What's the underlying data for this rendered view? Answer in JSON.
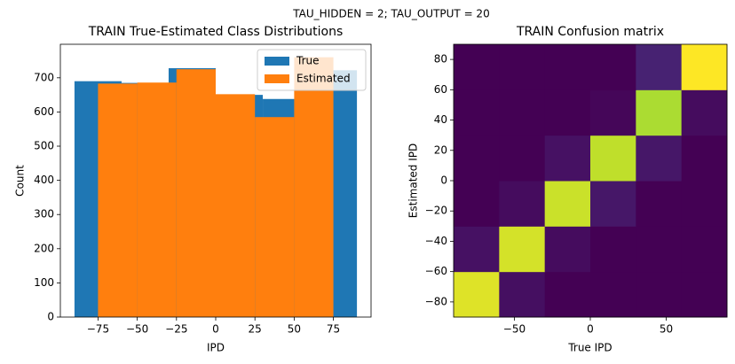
{
  "title": "TAU_HIDDEN = 2; TAU_OUTPUT = 20",
  "chart_data": [
    {
      "type": "histogram",
      "title": "TRAIN True-Estimated Class Distributions",
      "x_label": "IPD",
      "y_label": "Count",
      "series": [
        {
          "name": "True",
          "color": "#1f77b4",
          "bins": [
            -90,
            -60,
            -30,
            0,
            30,
            60,
            90
          ],
          "values": [
            690,
            685,
            728,
            650,
            638,
            722
          ]
        },
        {
          "name": "Estimated",
          "color": "#ff7f0e",
          "bins": [
            -75,
            -50,
            -25,
            0,
            25,
            50,
            75
          ],
          "values": [
            683,
            686,
            725,
            652,
            585,
            760
          ]
        }
      ],
      "xlim": [
        -99,
        99
      ],
      "ylim": [
        0,
        798
      ],
      "xticks": [
        {
          "value": -75,
          "label": "−75"
        },
        {
          "value": -50,
          "label": "−50"
        },
        {
          "value": -25,
          "label": "−25"
        },
        0,
        25,
        50,
        75
      ],
      "yticks": [
        0,
        100,
        200,
        300,
        400,
        500,
        600,
        700
      ],
      "legend": "upper right"
    },
    {
      "type": "heatmap",
      "title": "TRAIN Confusion matrix",
      "x_label": "True IPD",
      "y_label": "Estimated IPD",
      "colormap": "viridis",
      "z": [
        [
          610,
          25,
          0,
          0,
          0,
          0
        ],
        [
          30,
          600,
          20,
          0,
          0,
          0
        ],
        [
          0,
          20,
          590,
          40,
          0,
          0
        ],
        [
          0,
          0,
          30,
          580,
          40,
          0
        ],
        [
          0,
          0,
          0,
          10,
          560,
          20
        ],
        [
          0,
          0,
          0,
          0,
          60,
          640
        ]
      ],
      "xlim": [
        -90,
        90
      ],
      "ylim": [
        -90,
        90
      ],
      "xticks": [
        {
          "value": -50,
          "label": "−50"
        },
        0,
        50
      ],
      "yticks": [
        {
          "value": -80,
          "label": "−80"
        },
        {
          "value": -60,
          "label": "−60"
        },
        {
          "value": -40,
          "label": "−40"
        },
        {
          "value": -20,
          "label": "−20"
        },
        0,
        20,
        40,
        60,
        80
      ]
    }
  ]
}
